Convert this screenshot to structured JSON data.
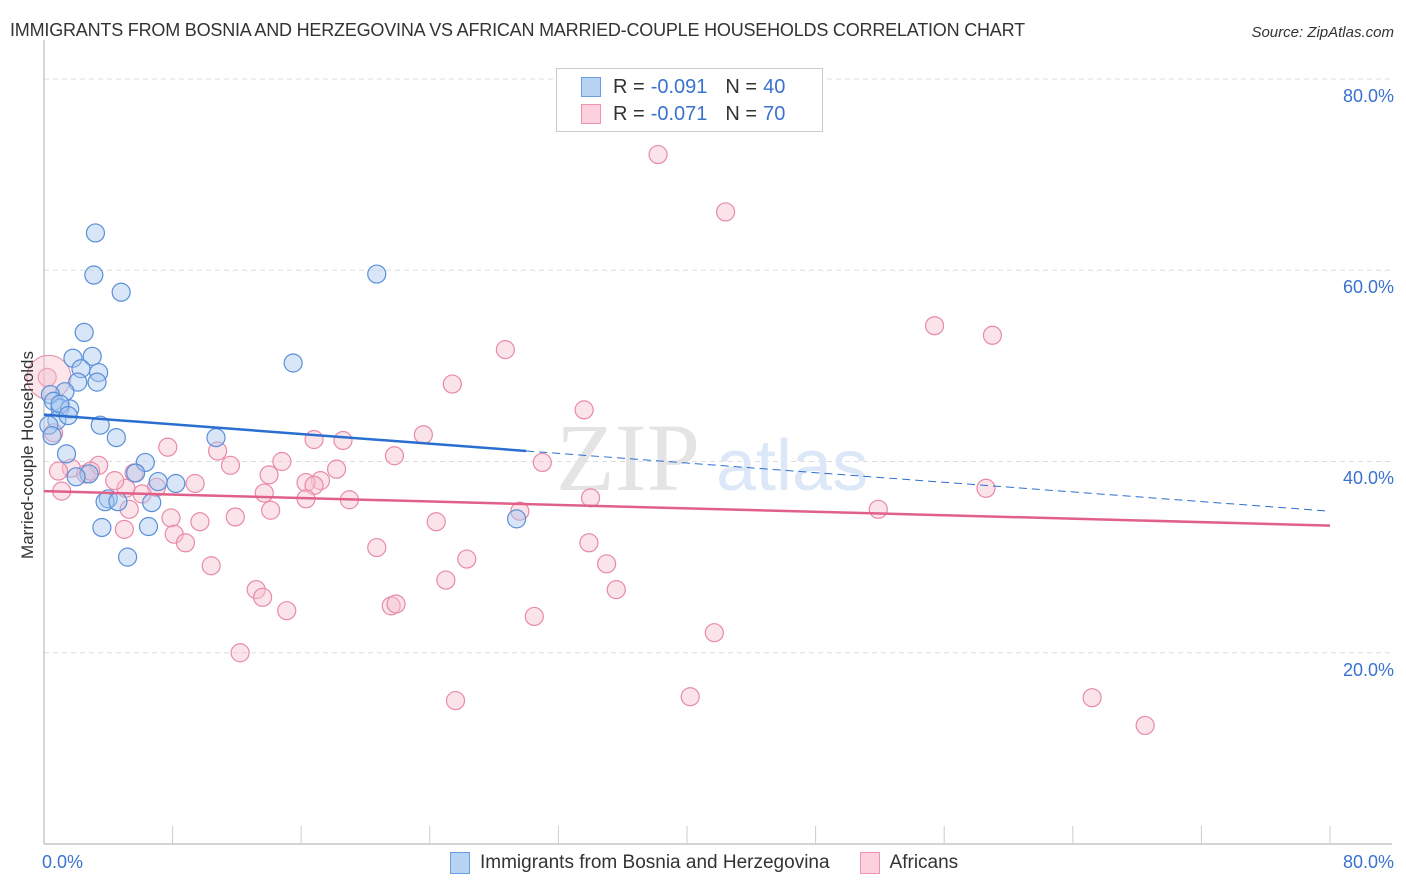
{
  "title": "IMMIGRANTS FROM BOSNIA AND HERZEGOVINA VS AFRICAN MARRIED-COUPLE HOUSEHOLDS CORRELATION CHART",
  "source": "Source: ZipAtlas.com",
  "watermark": {
    "zip": "ZIP",
    "atlas": "atlas"
  },
  "legend": {
    "series1": {
      "r_label": "R = ",
      "r_value": "-0.091",
      "n_label": "N = ",
      "n_value": "40"
    },
    "series2": {
      "r_label": "R = ",
      "r_value": "-0.071",
      "n_label": "N = ",
      "n_value": "70"
    }
  },
  "axes": {
    "ylabel": "Married-couple Households",
    "yticks": [
      "80.0%",
      "60.0%",
      "40.0%",
      "20.0%"
    ],
    "xtick_left": "0.0%",
    "xtick_right": "80.0%"
  },
  "bottom_legend": {
    "series1": "Immigrants from Bosnia and Herzegovina",
    "series2": "Africans"
  },
  "colors": {
    "blue_fill": "#a8c8f0",
    "blue_stroke": "#5a8fd8",
    "blue_line": "#2a6fd0",
    "pink_fill": "#f7c0d0",
    "pink_stroke": "#e88aa8",
    "pink_line": "#e0608a",
    "tick_text": "#3a72d0"
  },
  "chart_data": {
    "type": "scatter",
    "title": "IMMIGRANTS FROM BOSNIA AND HERZEGOVINA VS AFRICAN MARRIED-COUPLE HOUSEHOLDS CORRELATION CHART",
    "xlabel": "",
    "ylabel": "Married-couple Households",
    "xlim": [
      0,
      80
    ],
    "ylim": [
      0,
      80
    ],
    "grid": true,
    "legend_position": "top-center and bottom",
    "series": [
      {
        "name": "Immigrants from Bosnia and Herzegovina",
        "R": -0.091,
        "N": 40,
        "trend": {
          "x": [
            0,
            30
          ],
          "y": [
            44.9,
            41.1
          ],
          "extended_dashed_to": [
            80,
            34.8
          ]
        },
        "points": [
          [
            3.2,
            63.9
          ],
          [
            3.1,
            59.5
          ],
          [
            4.8,
            57.7
          ],
          [
            20.7,
            59.6
          ],
          [
            2.5,
            53.5
          ],
          [
            1.8,
            50.8
          ],
          [
            3.0,
            51.0
          ],
          [
            15.5,
            50.3
          ],
          [
            2.3,
            49.7
          ],
          [
            3.4,
            49.3
          ],
          [
            2.1,
            48.3
          ],
          [
            3.3,
            48.3
          ],
          [
            1.3,
            47.3
          ],
          [
            0.4,
            47.0
          ],
          [
            0.6,
            46.3
          ],
          [
            1.0,
            45.6
          ],
          [
            1.6,
            45.5
          ],
          [
            0.8,
            44.3
          ],
          [
            0.3,
            43.8
          ],
          [
            3.5,
            43.8
          ],
          [
            0.5,
            42.7
          ],
          [
            4.5,
            42.5
          ],
          [
            10.7,
            42.5
          ],
          [
            1.4,
            40.8
          ],
          [
            6.3,
            39.9
          ],
          [
            5.7,
            38.8
          ],
          [
            2.8,
            38.7
          ],
          [
            2.0,
            38.4
          ],
          [
            7.1,
            37.9
          ],
          [
            8.2,
            37.7
          ],
          [
            4.0,
            36.1
          ],
          [
            3.8,
            35.8
          ],
          [
            4.6,
            35.8
          ],
          [
            6.7,
            35.7
          ],
          [
            29.4,
            34.0
          ],
          [
            3.6,
            33.1
          ],
          [
            6.5,
            33.2
          ],
          [
            5.2,
            30.0
          ],
          [
            1.0,
            46.0
          ],
          [
            1.5,
            44.8
          ]
        ]
      },
      {
        "name": "Africans",
        "R": -0.071,
        "N": 70,
        "trend": {
          "x": [
            0,
            80
          ],
          "y": [
            36.9,
            33.3
          ]
        },
        "points": [
          [
            38.2,
            72.1
          ],
          [
            42.4,
            66.1
          ],
          [
            55.4,
            54.2
          ],
          [
            59.0,
            53.2
          ],
          [
            28.7,
            51.7
          ],
          [
            25.4,
            48.1
          ],
          [
            0.2,
            48.8
          ],
          [
            33.6,
            45.4
          ],
          [
            0.6,
            43.0
          ],
          [
            16.8,
            42.3
          ],
          [
            18.6,
            42.2
          ],
          [
            23.6,
            42.8
          ],
          [
            7.7,
            41.5
          ],
          [
            10.8,
            41.1
          ],
          [
            14.8,
            40.0
          ],
          [
            31.0,
            39.9
          ],
          [
            1.7,
            39.3
          ],
          [
            3.4,
            39.6
          ],
          [
            11.6,
            39.6
          ],
          [
            18.2,
            39.2
          ],
          [
            21.8,
            40.6
          ],
          [
            2.6,
            38.7
          ],
          [
            14.0,
            38.6
          ],
          [
            0.9,
            39.0
          ],
          [
            5.6,
            38.8
          ],
          [
            17.2,
            38.0
          ],
          [
            16.3,
            37.8
          ],
          [
            16.8,
            37.5
          ],
          [
            9.4,
            37.7
          ],
          [
            5.1,
            37.2
          ],
          [
            7.0,
            37.3
          ],
          [
            13.7,
            36.7
          ],
          [
            19.0,
            36.0
          ],
          [
            16.3,
            36.1
          ],
          [
            6.1,
            36.6
          ],
          [
            34.0,
            36.2
          ],
          [
            58.6,
            37.2
          ],
          [
            7.9,
            34.1
          ],
          [
            14.1,
            34.9
          ],
          [
            5.3,
            35.0
          ],
          [
            9.7,
            33.7
          ],
          [
            11.9,
            34.2
          ],
          [
            24.4,
            33.7
          ],
          [
            51.9,
            35.0
          ],
          [
            29.6,
            34.8
          ],
          [
            5.0,
            32.9
          ],
          [
            8.1,
            32.4
          ],
          [
            8.8,
            31.5
          ],
          [
            33.9,
            31.5
          ],
          [
            20.7,
            31.0
          ],
          [
            26.3,
            29.8
          ],
          [
            35.0,
            29.3
          ],
          [
            10.4,
            29.1
          ],
          [
            25.0,
            27.6
          ],
          [
            13.2,
            26.6
          ],
          [
            35.6,
            26.6
          ],
          [
            13.6,
            25.8
          ],
          [
            21.6,
            24.9
          ],
          [
            21.9,
            25.1
          ],
          [
            15.1,
            24.4
          ],
          [
            30.5,
            23.8
          ],
          [
            41.7,
            22.1
          ],
          [
            12.2,
            20.0
          ],
          [
            40.2,
            15.4
          ],
          [
            25.6,
            15.0
          ],
          [
            65.2,
            15.3
          ],
          [
            68.5,
            12.4
          ],
          [
            1.1,
            36.9
          ],
          [
            4.4,
            38.0
          ],
          [
            2.9,
            39.0
          ]
        ]
      }
    ]
  }
}
